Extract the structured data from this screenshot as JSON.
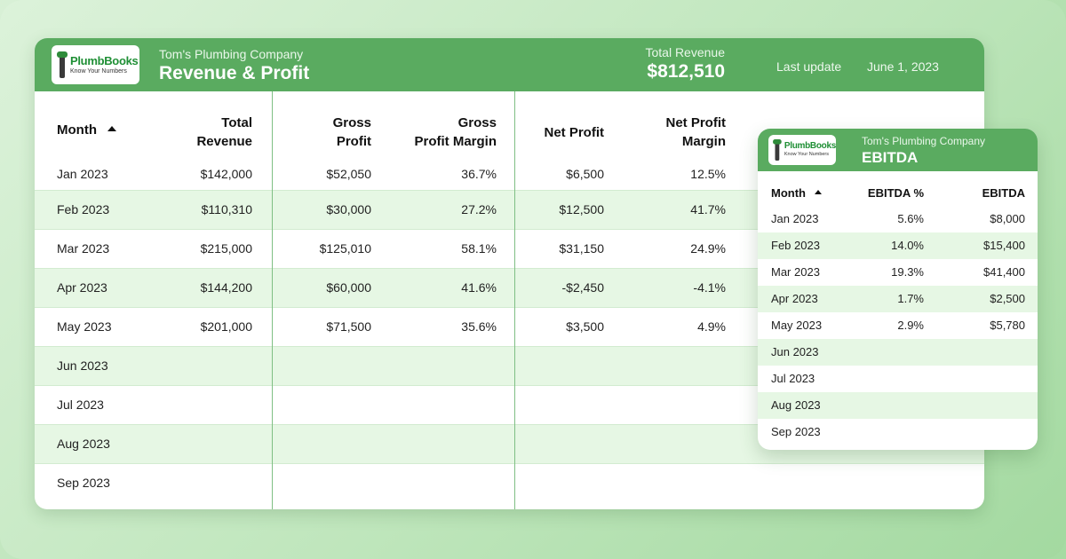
{
  "brand": {
    "name": "PlumbBooks",
    "tagline": "Know Your Numbers"
  },
  "main": {
    "company": "Tom's Plumbing Company",
    "title": "Revenue & Profit",
    "total_revenue_label": "Total Revenue",
    "total_revenue_value": "$812,510",
    "last_update_label": "Last update",
    "last_update_value": "June 1, 2023",
    "columns": {
      "month": "Month",
      "total_revenue_1": "Total",
      "total_revenue_2": "Revenue",
      "gross_profit_1": "Gross",
      "gross_profit_2": "Profit",
      "gpm_1": "Gross",
      "gpm_2": "Profit Margin",
      "net_profit": "Net Profit",
      "npm_1": "Net Profit",
      "npm_2": "Margin"
    },
    "rows": [
      {
        "month": "Jan 2023",
        "revenue": "$142,000",
        "gross": "$52,050",
        "gpm": "36.7%",
        "net": "$6,500",
        "npm": "12.5%"
      },
      {
        "month": "Feb 2023",
        "revenue": "$110,310",
        "gross": "$30,000",
        "gpm": "27.2%",
        "net": "$12,500",
        "npm": "41.7%"
      },
      {
        "month": "Mar 2023",
        "revenue": "$215,000",
        "gross": "$125,010",
        "gpm": "58.1%",
        "net": "$31,150",
        "npm": "24.9%"
      },
      {
        "month": "Apr 2023",
        "revenue": "$144,200",
        "gross": "$60,000",
        "gpm": "41.6%",
        "net": "-$2,450",
        "npm": "-4.1%"
      },
      {
        "month": "May 2023",
        "revenue": "$201,000",
        "gross": "$71,500",
        "gpm": "35.6%",
        "net": "$3,500",
        "npm": "4.9%"
      },
      {
        "month": "Jun 2023",
        "revenue": "",
        "gross": "",
        "gpm": "",
        "net": "",
        "npm": ""
      },
      {
        "month": "Jul 2023",
        "revenue": "",
        "gross": "",
        "gpm": "",
        "net": "",
        "npm": ""
      },
      {
        "month": "Aug 2023",
        "revenue": "",
        "gross": "",
        "gpm": "",
        "net": "",
        "npm": ""
      },
      {
        "month": "Sep 2023",
        "revenue": "",
        "gross": "",
        "gpm": "",
        "net": "",
        "npm": ""
      }
    ]
  },
  "ebitda": {
    "company": "Tom's Plumbing Company",
    "title": "EBITDA",
    "columns": {
      "month": "Month",
      "pct": "EBITDA %",
      "value": "EBITDA"
    },
    "rows": [
      {
        "month": "Jan 2023",
        "pct": "5.6%",
        "value": "$8,000"
      },
      {
        "month": "Feb 2023",
        "pct": "14.0%",
        "value": "$15,400"
      },
      {
        "month": "Mar 2023",
        "pct": "19.3%",
        "value": "$41,400"
      },
      {
        "month": "Apr 2023",
        "pct": "1.7%",
        "value": "$2,500"
      },
      {
        "month": "May 2023",
        "pct": "2.9%",
        "value": "$5,780"
      },
      {
        "month": "Jun 2023",
        "pct": "",
        "value": ""
      },
      {
        "month": "Jul 2023",
        "pct": "",
        "value": ""
      },
      {
        "month": "Aug 2023",
        "pct": "",
        "value": ""
      },
      {
        "month": "Sep 2023",
        "pct": "",
        "value": ""
      }
    ]
  },
  "colors": {
    "header_green": "#5aab60",
    "row_alt": "#e6f7e4",
    "brand_green": "#1f8f35"
  }
}
